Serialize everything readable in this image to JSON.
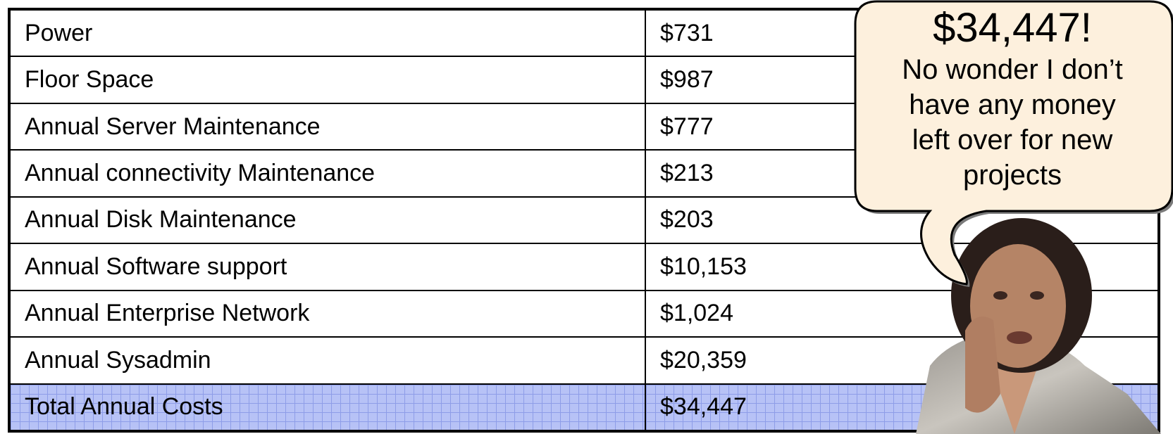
{
  "table": {
    "rows": [
      [
        "Power",
        "$731"
      ],
      [
        "Floor Space",
        "$987"
      ],
      [
        "Annual Server Maintenance",
        "$777"
      ],
      [
        "Annual connectivity Maintenance",
        "$213"
      ],
      [
        "Annual Disk Maintenance",
        "$203"
      ],
      [
        "Annual Software support",
        "$10,153"
      ],
      [
        "Annual Enterprise Network",
        "$1,024"
      ],
      [
        "Annual Sysadmin",
        "$20,359"
      ]
    ],
    "total": [
      "Total Annual Costs",
      "$34,447"
    ]
  },
  "callout": {
    "title": "$34,447!",
    "lines": [
      "No wonder I don’t",
      "have any money",
      "left over for new",
      "projects"
    ]
  }
}
